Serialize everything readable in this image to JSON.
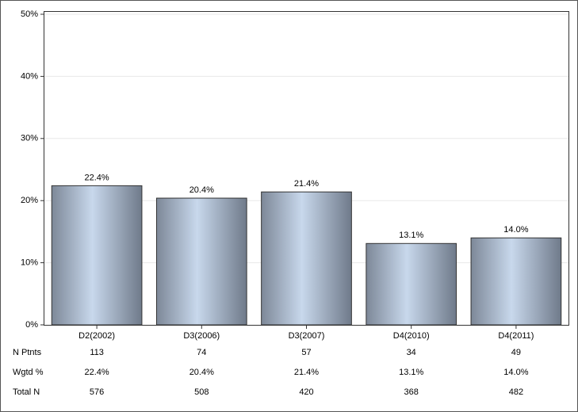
{
  "chart_data": {
    "type": "bar",
    "categories": [
      "D2(2002)",
      "D3(2006)",
      "D3(2007)",
      "D4(2010)",
      "D4(2011)"
    ],
    "values": [
      22.4,
      20.4,
      21.4,
      13.1,
      14.0
    ],
    "value_labels": [
      "22.4%",
      "20.4%",
      "21.4%",
      "13.1%",
      "14.0%"
    ],
    "color": "#c8d8ec",
    "ylim": [
      0,
      50
    ],
    "yticks": [
      {
        "value": 0,
        "label": "0%"
      },
      {
        "value": 10,
        "label": "10%"
      },
      {
        "value": 20,
        "label": "20%"
      },
      {
        "value": 30,
        "label": "30%"
      },
      {
        "value": 40,
        "label": "40%"
      },
      {
        "value": 50,
        "label": "50%"
      }
    ],
    "grid": true,
    "table": {
      "rows": [
        {
          "label": "N Ptnts",
          "cells": [
            "113",
            "74",
            "57",
            "34",
            "49"
          ]
        },
        {
          "label": "Wgtd %",
          "cells": [
            "22.4%",
            "20.4%",
            "21.4%",
            "13.1%",
            "14.0%"
          ]
        },
        {
          "label": "Total N",
          "cells": [
            "576",
            "508",
            "420",
            "368",
            "482"
          ]
        }
      ]
    }
  }
}
